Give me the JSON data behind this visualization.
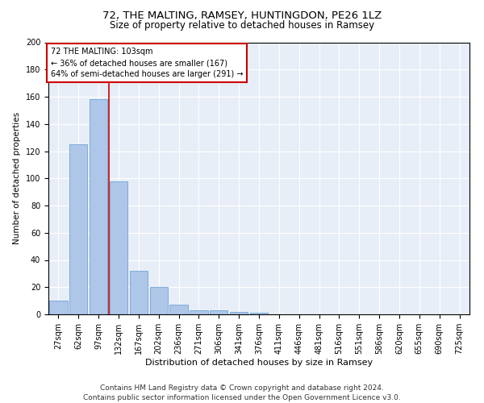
{
  "title1": "72, THE MALTING, RAMSEY, HUNTINGDON, PE26 1LZ",
  "title2": "Size of property relative to detached houses in Ramsey",
  "xlabel": "Distribution of detached houses by size in Ramsey",
  "ylabel": "Number of detached properties",
  "footnote": "Contains HM Land Registry data © Crown copyright and database right 2024.\nContains public sector information licensed under the Open Government Licence v3.0.",
  "categories": [
    "27sqm",
    "62sqm",
    "97sqm",
    "132sqm",
    "167sqm",
    "202sqm",
    "236sqm",
    "271sqm",
    "306sqm",
    "341sqm",
    "376sqm",
    "411sqm",
    "446sqm",
    "481sqm",
    "516sqm",
    "551sqm",
    "586sqm",
    "620sqm",
    "655sqm",
    "690sqm",
    "725sqm"
  ],
  "values": [
    10,
    125,
    158,
    98,
    32,
    20,
    7,
    3,
    3,
    2,
    1,
    0,
    0,
    0,
    0,
    0,
    0,
    0,
    0,
    0,
    0
  ],
  "bar_color": "#aec6e8",
  "bar_edge_color": "#5b9bd5",
  "background_color": "#e8eef7",
  "grid_color": "#ffffff",
  "property_line_x": 2.5,
  "annotation_text": "72 THE MALTING: 103sqm\n← 36% of detached houses are smaller (167)\n64% of semi-detached houses are larger (291) →",
  "annotation_box_color": "#ffffff",
  "annotation_box_edge": "#cc0000",
  "vline_color": "#cc0000",
  "ylim": [
    0,
    200
  ],
  "yticks": [
    0,
    20,
    40,
    60,
    80,
    100,
    120,
    140,
    160,
    180,
    200
  ],
  "title1_fontsize": 9.5,
  "title2_fontsize": 8.5,
  "xlabel_fontsize": 8,
  "ylabel_fontsize": 7.5,
  "tick_fontsize": 7,
  "annotation_fontsize": 7,
  "footnote_fontsize": 6.5
}
